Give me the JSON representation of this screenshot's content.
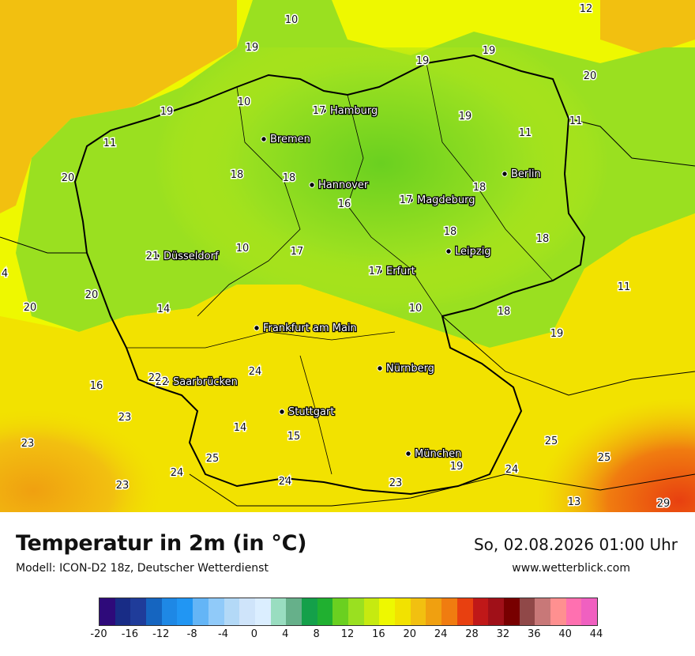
{
  "title": "Temperatur in 2m (in °C)",
  "model": "Modell: ICON-D2 18z, Deutscher Wetterdienst",
  "datetime": "So, 02.08.2026 01:00 Uhr",
  "website": "www.wetterblick.com",
  "cities": [
    {
      "name": "Hamburg",
      "temp": "17"
    },
    {
      "name": "Bremen"
    },
    {
      "name": "Hannover"
    },
    {
      "name": "Berlin"
    },
    {
      "name": "Magdeburg",
      "temp": "17"
    },
    {
      "name": "Leipzig"
    },
    {
      "name": "Düsseldorf",
      "temp": "21"
    },
    {
      "name": "Erfurt",
      "temp": "17"
    },
    {
      "name": "Frankfurt am Main"
    },
    {
      "name": "Nürnberg"
    },
    {
      "name": "Saarbrücken",
      "temp": "22"
    },
    {
      "name": "Stuttgart"
    },
    {
      "name": "München"
    }
  ],
  "temperature_labels": [
    "10",
    "12",
    "19",
    "19",
    "19",
    "20",
    "19",
    "10",
    "19",
    "11",
    "11",
    "11",
    "20",
    "18",
    "18",
    "16",
    "18",
    "17",
    "18",
    "18",
    "10",
    "17",
    "20",
    "14",
    "20",
    "10",
    "18",
    "11",
    "19",
    "16",
    "22",
    "24",
    "23",
    "14",
    "15",
    "23",
    "25",
    "24",
    "24",
    "23",
    "23",
    "25",
    "25",
    "24",
    "13",
    "29",
    "4",
    "19"
  ],
  "legend": {
    "colors": [
      "#2e0a7a",
      "#182c86",
      "#1f3c9a",
      "#1565c0",
      "#1e88e5",
      "#2196f3",
      "#64b5f6",
      "#90caf9",
      "#b3d9f7",
      "#cfe4fa",
      "#dbeeff",
      "#99ddc0",
      "#66b08a",
      "#14a04a",
      "#20b030",
      "#6ad020",
      "#9ae020",
      "#c6ea10",
      "#eef800",
      "#f2e200",
      "#f2c010",
      "#f0a010",
      "#f07c10",
      "#e84010",
      "#c01818",
      "#a01018",
      "#780000",
      "#904848",
      "#c87878",
      "#ff9090",
      "#ff70b0",
      "#f060c0"
    ],
    "ticks": [
      "-20",
      "-16",
      "-12",
      "-8",
      "-4",
      "0",
      "4",
      "8",
      "12",
      "16",
      "20",
      "24",
      "28",
      "32",
      "36",
      "40",
      "44"
    ]
  }
}
